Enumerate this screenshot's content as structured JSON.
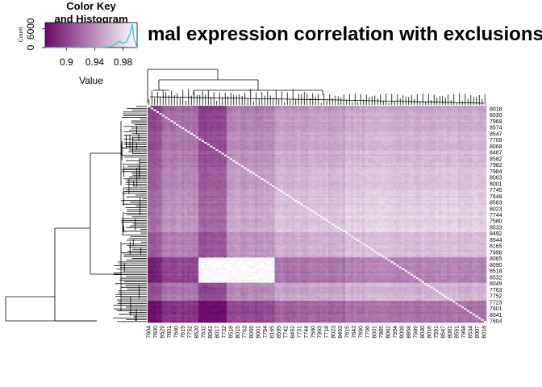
{
  "chart_data": {
    "type": "heatmap",
    "title": "mal expression correlation with exclusions",
    "colors": {
      "low": "#6a0a6a",
      "high": "#ffffff",
      "histogram_line": "#22d3d3",
      "dendrogram": "#000000"
    },
    "color_key": {
      "title_line1": "Color Key",
      "title_line2": "and Histogram",
      "xlabel": "Value",
      "ylabel": "Count",
      "value_range": [
        0.87,
        1.0
      ],
      "x_ticks": [
        "0.9",
        "0.94",
        "0.98"
      ],
      "x_tick_values": [
        0.9,
        0.94,
        0.98
      ],
      "y_ticks": [
        "0",
        "6000"
      ],
      "y_tick_values": [
        0,
        6000
      ],
      "ylim": [
        0,
        8000
      ],
      "histogram": {
        "x": [
          0.87,
          0.88,
          0.89,
          0.9,
          0.91,
          0.92,
          0.93,
          0.94,
          0.95,
          0.96,
          0.965,
          0.97,
          0.975,
          0.98,
          0.985,
          0.99,
          0.993,
          0.996,
          1.0
        ],
        "y": [
          0,
          0,
          0,
          0,
          0,
          0,
          0,
          0,
          50,
          200,
          600,
          1200,
          2000,
          1400,
          1800,
          4500,
          7500,
          2500,
          0
        ]
      }
    },
    "row_labels": [
      "8018",
      "8030",
      "7968",
      "8574",
      "8547",
      "7709",
      "8068",
      "8487",
      "8582",
      "7982",
      "7984",
      "8063",
      "8001",
      "7745",
      "7648",
      "8583",
      "8023",
      "7744",
      "7580",
      "8533",
      "8492",
      "8544",
      "8165",
      "7996",
      "8065",
      "8090",
      "8518",
      "8532",
      "8049",
      "7763",
      "7752",
      "7723",
      "7601",
      "8041",
      "7604"
    ],
    "col_labels": [
      "7604",
      "7600",
      "8529",
      "7601",
      "7640",
      "7619",
      "7752",
      "8520",
      "7632",
      "8042",
      "8017",
      "7732",
      "8518",
      "8015",
      "7763",
      "8065",
      "8001",
      "7754",
      "8165",
      "8595",
      "7742",
      "8492",
      "7731",
      "7744",
      "7580",
      "7993",
      "7718",
      "8023",
      "8493",
      "7615",
      "7643",
      "7690",
      "7706",
      "8001",
      "7985",
      "8062",
      "7994",
      "8008",
      "8858",
      "7989",
      "8030",
      "8016",
      "7591",
      "8547",
      "8081",
      "8591",
      "7968",
      "8534",
      "8007",
      "8018"
    ]
  }
}
